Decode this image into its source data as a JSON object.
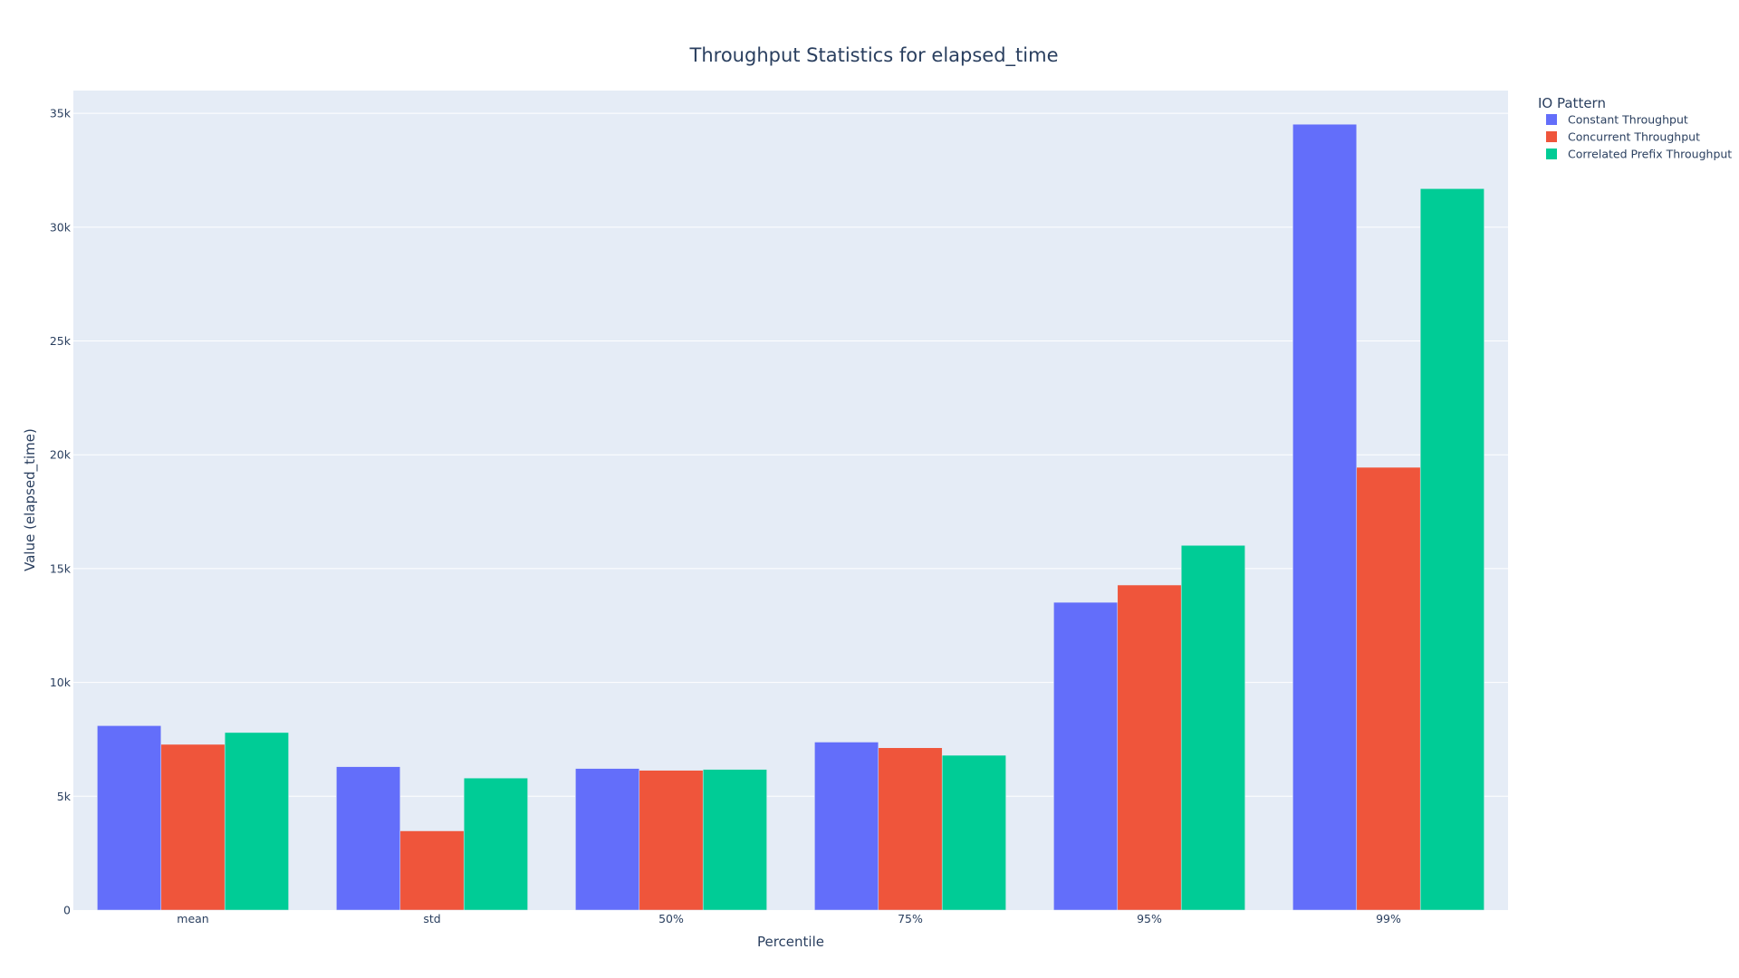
{
  "chart_data": {
    "type": "bar",
    "title": "Throughput Statistics for elapsed_time",
    "xlabel": "Percentile",
    "ylabel": "Value (elapsed_time)",
    "categories": [
      "mean",
      "std",
      "50%",
      "75%",
      "95%",
      "99%"
    ],
    "ylim": [
      0,
      36000
    ],
    "yticks": [
      0,
      5000,
      10000,
      15000,
      20000,
      25000,
      30000,
      35000
    ],
    "ytick_labels": [
      "0",
      "5k",
      "10k",
      "15k",
      "20k",
      "25k",
      "30k",
      "35k"
    ],
    "grid": true,
    "legend": {
      "title": "IO Pattern",
      "placement": "top-right, outside plot"
    },
    "series": [
      {
        "name": "Constant Throughput",
        "color": "#636efa",
        "values": [
          8100,
          6300,
          6220,
          7380,
          13520,
          34520
        ]
      },
      {
        "name": "Concurrent Throughput",
        "color": "#ef553b",
        "values": [
          7280,
          3480,
          6140,
          7130,
          14280,
          19450
        ]
      },
      {
        "name": "Correlated Prefix Throughput",
        "color": "#00cc96",
        "values": [
          7800,
          5800,
          6180,
          6800,
          16020,
          31690
        ]
      }
    ],
    "plot_background": "#e5ecf6",
    "grid_color": "#ffffff"
  }
}
